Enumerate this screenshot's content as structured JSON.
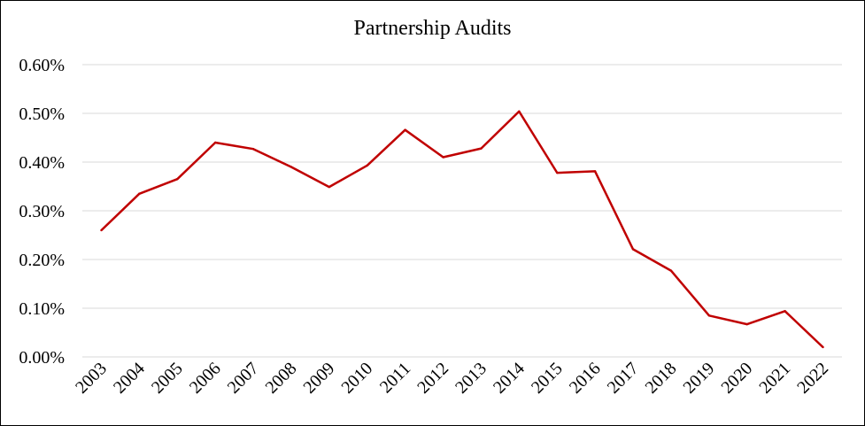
{
  "chart_data": {
    "type": "line",
    "title": "Partnership Audits",
    "xlabel": "",
    "ylabel": "",
    "categories": [
      "2003",
      "2004",
      "2005",
      "2006",
      "2007",
      "2008",
      "2009",
      "2010",
      "2011",
      "2012",
      "2013",
      "2014",
      "2015",
      "2016",
      "2017",
      "2018",
      "2019",
      "2020",
      "2021",
      "2022"
    ],
    "series": [
      {
        "name": "",
        "values": [
          0.26,
          0.335,
          0.365,
          0.44,
          0.427,
          0.39,
          0.349,
          0.393,
          0.466,
          0.41,
          0.428,
          0.504,
          0.378,
          0.381,
          0.221,
          0.177,
          0.085,
          0.067,
          0.094,
          0.02
        ]
      }
    ],
    "ylim": [
      0,
      0.6
    ],
    "yticks": [
      0,
      0.1,
      0.2,
      0.3,
      0.4,
      0.5,
      0.6
    ],
    "ytick_labels": [
      "0.00%",
      "0.10%",
      "0.20%",
      "0.30%",
      "0.40%",
      "0.50%",
      "0.60%"
    ],
    "grid": true,
    "legend": "none",
    "colors": {
      "line": "#c00000",
      "grid": "#d9d9d9"
    }
  }
}
